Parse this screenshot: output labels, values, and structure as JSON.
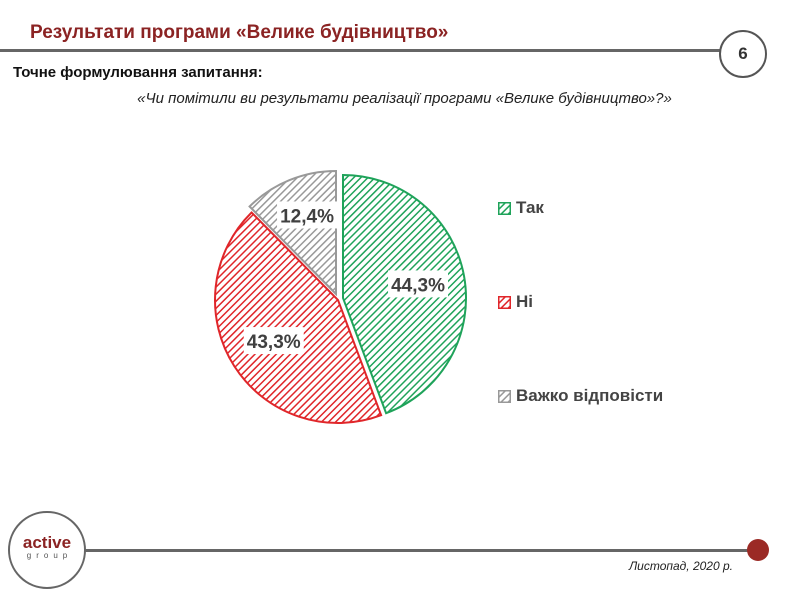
{
  "header": {
    "title": "Результати програми «Велике будівництво»",
    "page_number": "6"
  },
  "question": {
    "label": "Точне формулювання запитання:",
    "text": "«Чи помітили ви результати реалізації програми «Велике будівництво»?»"
  },
  "chart_data": {
    "type": "pie",
    "categories": [
      "Так",
      "Ні",
      "Важко відповісти"
    ],
    "values": [
      44.3,
      43.3,
      12.4
    ],
    "data_labels": [
      "44,3%",
      "43,3%",
      "12,4%"
    ],
    "colors": [
      "#1fa35a",
      "#e0262a",
      "#999999"
    ],
    "fill": "diagonal-hatch",
    "legend_position": "right"
  },
  "footer": {
    "logo_text": "active",
    "logo_sub": "group",
    "date": "Листопад, 2020 р."
  }
}
